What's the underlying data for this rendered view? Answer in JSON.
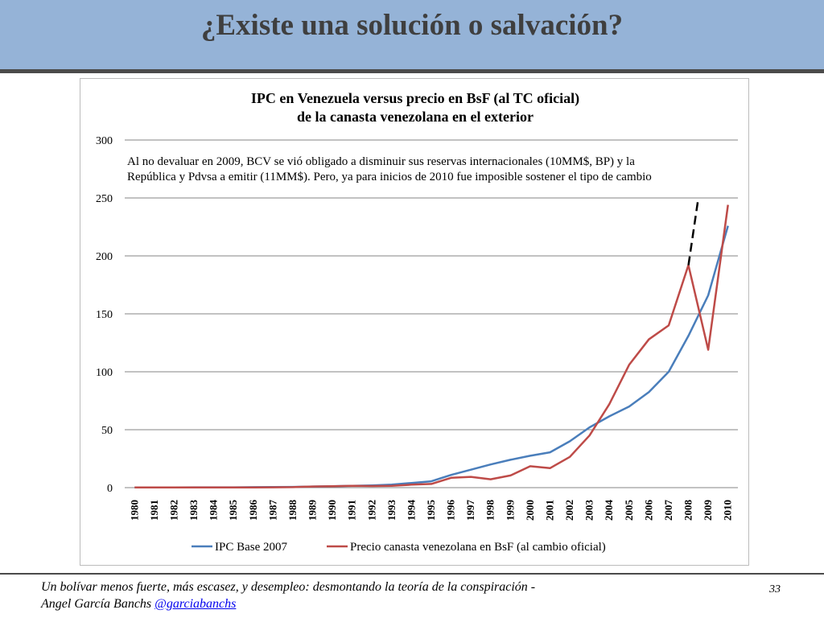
{
  "slide": {
    "title": "¿Existe una solución o salvación?",
    "footer_line1": "Un bolívar menos fuerte, más escasez, y desempleo: desmontando la teoría de la conspiración -",
    "footer_author": "Angel García Banchs ",
    "footer_handle": "@garciabanchs",
    "page_number": "33"
  },
  "colors": {
    "header_bg": "#95b3d7",
    "ipc_line": "#4a7ebb",
    "price_line": "#be4b48",
    "grid": "#868686"
  },
  "chart_data": {
    "type": "line",
    "title_line1": "IPC en Venezuela versus precio en BsF (al TC oficial)",
    "title_line2": "de la canasta venezolana en el exterior",
    "annotation_line1": "Al no devaluar en 2009, BCV se vió obligado a disminuir sus reservas internacionales (10MM$, BP) y la",
    "annotation_line2": "República y Pdvsa a emitir (11MM$). Pero, ya para inicios de 2010 fue imposible sostener el tipo de cambio",
    "categories": [
      "1980",
      "1981",
      "1982",
      "1983",
      "1984",
      "1985",
      "1986",
      "1987",
      "1988",
      "1989",
      "1990",
      "1991",
      "1992",
      "1993",
      "1994",
      "1995",
      "1996",
      "1997",
      "1998",
      "1999",
      "2000",
      "2001",
      "2002",
      "2003",
      "2004",
      "2005",
      "2006",
      "2007",
      "2008",
      "2009",
      "2010"
    ],
    "ylim": [
      0,
      300
    ],
    "yticks": [
      0,
      50,
      100,
      150,
      200,
      250,
      300
    ],
    "grid": true,
    "legend_position": "bottom",
    "series": [
      {
        "name": "IPC Base 2007",
        "color": "#4a7ebb",
        "values": [
          0.2,
          0.2,
          0.2,
          0.3,
          0.3,
          0.3,
          0.4,
          0.5,
          0.6,
          1.0,
          1.2,
          1.5,
          1.9,
          2.6,
          4.0,
          5.5,
          11,
          15.5,
          20,
          24,
          27.5,
          30.5,
          40,
          52,
          61.5,
          70,
          82.5,
          100,
          131,
          166,
          226
        ]
      },
      {
        "name": "Precio canasta venezolana en BsF (al cambio oficial)",
        "color": "#be4b48",
        "values": [
          0.2,
          0.2,
          0.2,
          0.2,
          0.2,
          0.2,
          0.2,
          0.3,
          0.4,
          1.0,
          1.2,
          1.6,
          1.4,
          1.5,
          2.6,
          3.2,
          8.5,
          9.3,
          7.2,
          10.5,
          18.5,
          16.8,
          26.5,
          45,
          72,
          106,
          128,
          140,
          192,
          119,
          244
        ]
      }
    ],
    "dashed_extension": {
      "from": [
        2008,
        192
      ],
      "to": [
        2008.5,
        250
      ]
    }
  }
}
